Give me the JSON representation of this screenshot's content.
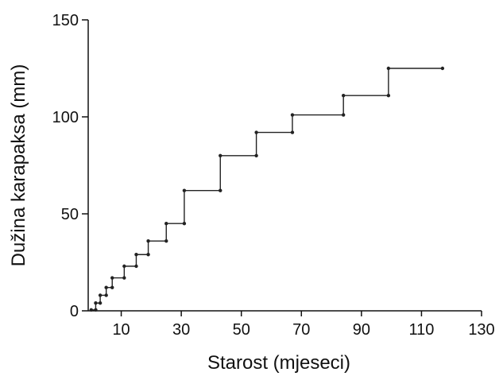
{
  "chart_data": {
    "type": "line",
    "title": "",
    "xlabel": "Starost (mjeseci)",
    "ylabel": "Dužina karapaksa (mm)",
    "xlim": [
      -1,
      130
    ],
    "ylim": [
      0,
      150
    ],
    "xticks": [
      10,
      30,
      50,
      70,
      90,
      110,
      130
    ],
    "yticks": [
      0,
      50,
      100,
      150
    ],
    "grid": false,
    "legend": "none",
    "line_style": "step",
    "colors": {
      "line": "#222222",
      "marker": "#222222",
      "axis": "#111111"
    },
    "series": [
      {
        "values_xy": [
          [
            0,
            0.5
          ],
          [
            1.5,
            4
          ],
          [
            3,
            8
          ],
          [
            5,
            12
          ],
          [
            7,
            17
          ],
          [
            11,
            23
          ],
          [
            15,
            29
          ],
          [
            19,
            36
          ],
          [
            25,
            45
          ],
          [
            31,
            62
          ],
          [
            43,
            80
          ],
          [
            55,
            92
          ],
          [
            67,
            101
          ],
          [
            84,
            111
          ],
          [
            99,
            125
          ],
          [
            117,
            125
          ]
        ]
      }
    ]
  }
}
